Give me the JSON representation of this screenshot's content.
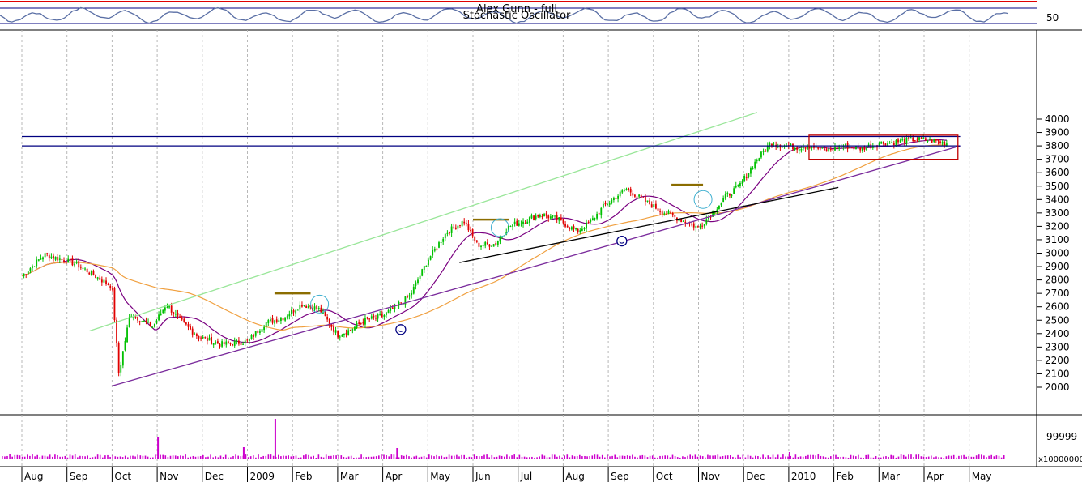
{
  "chart_data": [
    {
      "type": "line",
      "panel": "indicator",
      "title": "Stochastic Oscillator",
      "overlay_title": "Alex Gunn - full",
      "tick_labels": [
        "50"
      ],
      "line_color": "#5a6fa5",
      "band_color": "#000080"
    },
    {
      "type": "candlestick",
      "panel": "price",
      "ylim": [
        1900,
        4000
      ],
      "y_ticks": [
        2000,
        2100,
        2200,
        2300,
        2400,
        2500,
        2600,
        2700,
        2800,
        2900,
        3000,
        3100,
        3200,
        3300,
        3400,
        3500,
        3600,
        3700,
        3800,
        3900,
        4000
      ],
      "x_labels": [
        "Aug",
        "Sep",
        "Oct",
        "Nov",
        "Dec",
        "2009",
        "Feb",
        "Mar",
        "Apr",
        "May",
        "Jun",
        "Jul",
        "Aug",
        "Sep",
        "Oct",
        "Nov",
        "Dec",
        "2010",
        "Feb",
        "Mar",
        "Apr",
        "May"
      ],
      "grid": true,
      "up_color": "#00c000",
      "down_color": "#e00000",
      "series": [
        {
          "kind": "close_anchors",
          "x_months": [
            0,
            0.5,
            1.2,
            2.0,
            2.15,
            2.4,
            2.9,
            3.2,
            3.5,
            3.9,
            4.4,
            5.0,
            5.4,
            5.8,
            6.2,
            6.6,
            7.0,
            7.3,
            7.6,
            8.0,
            8.6,
            9.0,
            9.4,
            9.8,
            10.1,
            10.5,
            10.8,
            11.2,
            11.5,
            11.9,
            12.3,
            12.6,
            12.9,
            13.4,
            13.8,
            14.2,
            14.6,
            15.0,
            15.3,
            15.6,
            15.9,
            16.3,
            16.6,
            16.9,
            17.2,
            17.5,
            17.8,
            18.2,
            18.6,
            19.0,
            19.4,
            19.8,
            20.2,
            20.5
          ],
          "close": [
            2830,
            2990,
            2920,
            2750,
            2100,
            2550,
            2450,
            2620,
            2500,
            2380,
            2320,
            2340,
            2480,
            2520,
            2620,
            2580,
            2390,
            2430,
            2500,
            2530,
            2680,
            2950,
            3150,
            3240,
            3060,
            3070,
            3200,
            3250,
            3290,
            3250,
            3160,
            3230,
            3350,
            3480,
            3390,
            3310,
            3250,
            3190,
            3300,
            3420,
            3500,
            3700,
            3820,
            3800,
            3790,
            3800,
            3760,
            3800,
            3780,
            3820,
            3830,
            3850,
            3840,
            3820
          ]
        },
        {
          "kind": "moving_average",
          "name": "",
          "color": "#7a0080",
          "period": 10
        },
        {
          "kind": "moving_average",
          "name": "",
          "color": "#f0a040",
          "period": 40
        }
      ],
      "trendlines": [
        {
          "color": "#7a2b9c",
          "x_months": [
            2.0,
            20.8
          ],
          "y": [
            2010,
            3800
          ]
        },
        {
          "color": "#99e699",
          "x_months": [
            1.5,
            16.3
          ],
          "y": [
            2420,
            4050
          ]
        },
        {
          "color": "#000000",
          "x_months": [
            9.7,
            18.1
          ],
          "y": [
            2930,
            3490
          ]
        },
        {
          "color": "#000080",
          "x_months": [
            0,
            20.8
          ],
          "y": [
            3870,
            3870
          ]
        },
        {
          "color": "#000080",
          "x_months": [
            0,
            20.8
          ],
          "y": [
            3800,
            3800
          ]
        }
      ],
      "resistance_marks": [
        {
          "color": "#8b6d00",
          "x_months": [
            5.6,
            6.4
          ],
          "y": 2700
        },
        {
          "color": "#8b6d00",
          "x_months": [
            10.0,
            10.8
          ],
          "y": 3250
        },
        {
          "color": "#8b6d00",
          "x_months": [
            14.4,
            15.1
          ],
          "y": 3510
        }
      ],
      "circle_marks": [
        {
          "x_months": 6.6,
          "y": 2620
        },
        {
          "x_months": 10.6,
          "y": 3190
        },
        {
          "x_months": 15.1,
          "y": 3400
        }
      ],
      "smiley_marks": [
        {
          "x_months": 8.4,
          "y": 2430
        },
        {
          "x_months": 13.3,
          "y": 3090
        }
      ],
      "box": {
        "color": "#c00000",
        "x_months": [
          17.45,
          20.75
        ],
        "y": [
          3700,
          3880
        ]
      }
    },
    {
      "type": "bar",
      "panel": "volume",
      "tick_labels": [
        "99999"
      ],
      "unit_label": "x10000000",
      "color": "#cc00cc",
      "spikes": [
        {
          "x_months": 3.0,
          "rel": 0.55
        },
        {
          "x_months": 4.9,
          "rel": 0.3
        },
        {
          "x_months": 5.6,
          "rel": 1.0
        },
        {
          "x_months": 8.3,
          "rel": 0.28
        },
        {
          "x_months": 17.0,
          "rel": 0.18
        }
      ]
    }
  ]
}
